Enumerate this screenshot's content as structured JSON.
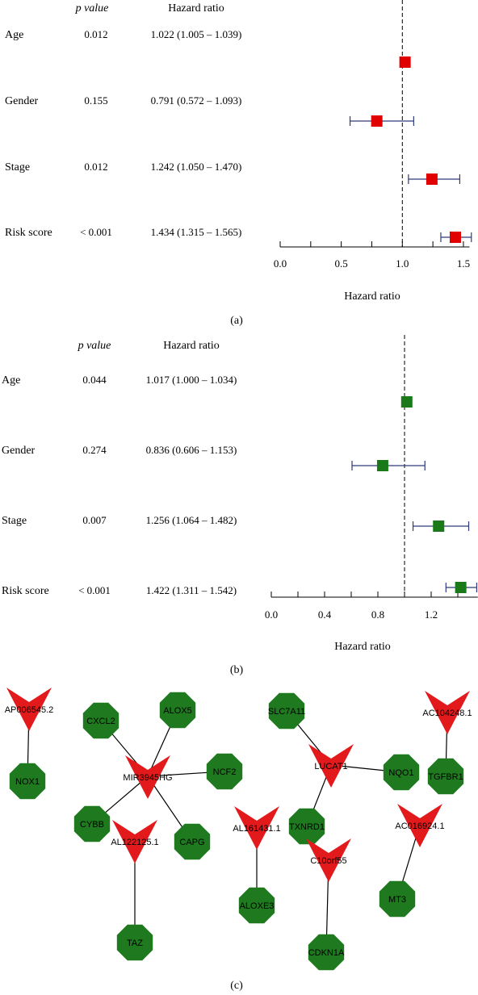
{
  "panels": [
    {
      "label": "(a)",
      "columns": {
        "pvalue": "p value",
        "hr": "Hazard ratio"
      },
      "color": "#e00000",
      "chart_data": {
        "type": "forest",
        "title": "",
        "xlabel": "Hazard ratio",
        "xlim": [
          0,
          1.55
        ],
        "ticks": [
          "0.0",
          "0.5",
          "1.0",
          "1.5"
        ],
        "tick_values": [
          0,
          0.5,
          1.0,
          1.5
        ],
        "reference_line": 1.0,
        "rows": [
          {
            "name": "Age",
            "p": "0.012",
            "hr_text": "1.022 (1.005 – 1.039)",
            "hr": 1.022,
            "lo": 1.005,
            "hi": 1.039
          },
          {
            "name": "Gender",
            "p": "0.155",
            "hr_text": "0.791 (0.572 – 1.093)",
            "hr": 0.791,
            "lo": 0.572,
            "hi": 1.093
          },
          {
            "name": "Stage",
            "p": "0.012",
            "hr_text": "1.242 (1.050 – 1.470)",
            "hr": 1.242,
            "lo": 1.05,
            "hi": 1.47
          },
          {
            "name": "Risk score",
            "p": "< 0.001",
            "hr_text": "1.434 (1.315 – 1.565)",
            "hr": 1.434,
            "lo": 1.315,
            "hi": 1.565
          }
        ]
      }
    },
    {
      "label": "(b)",
      "columns": {
        "pvalue": "p value",
        "hr": "Hazard ratio"
      },
      "color": "#1a7a1a",
      "chart_data": {
        "type": "forest",
        "title": "",
        "xlabel": "Hazard ratio",
        "xlim": [
          0,
          1.55
        ],
        "ticks": [
          "0.0",
          "0.4",
          "0.8",
          "1.2"
        ],
        "tick_values": [
          0,
          0.4,
          0.8,
          1.2
        ],
        "reference_line": 1.0,
        "rows": [
          {
            "name": "Age",
            "p": "0.044",
            "hr_text": "1.017 (1.000 – 1.034)",
            "hr": 1.017,
            "lo": 1.0,
            "hi": 1.034
          },
          {
            "name": "Gender",
            "p": "0.274",
            "hr_text": "0.836 (0.606 – 1.153)",
            "hr": 0.836,
            "lo": 0.606,
            "hi": 1.153
          },
          {
            "name": "Stage",
            "p": "0.007",
            "hr_text": "1.256 (1.064 – 1.482)",
            "hr": 1.256,
            "lo": 1.064,
            "hi": 1.482
          },
          {
            "name": "Risk score",
            "p": "< 0.001",
            "hr_text": "1.422 (1.311 – 1.542)",
            "hr": 1.422,
            "lo": 1.311,
            "hi": 1.542
          }
        ]
      }
    }
  ],
  "network": {
    "label": "(c)",
    "colors": {
      "lncrna": "#e31a1c",
      "gene": "#1f7a1f"
    },
    "lncrnas": [
      "AP006545.2",
      "MIR3945HG",
      "LUCAT1",
      "AC104248.1",
      "AL161431.1",
      "AC016924.1",
      "AL122125.1",
      "C10orf55"
    ],
    "genes": [
      "NOX1",
      "CXCL2",
      "ALOX5",
      "NCF2",
      "CYBB",
      "CAPG",
      "SLC7A11",
      "NQO1",
      "TXNRD1",
      "TGFBR1",
      "ALOXE3",
      "MT3",
      "TAZ",
      "CDKN1A"
    ],
    "edges": [
      [
        "AP006545.2",
        "NOX1"
      ],
      [
        "MIR3945HG",
        "CXCL2"
      ],
      [
        "MIR3945HG",
        "ALOX5"
      ],
      [
        "MIR3945HG",
        "NCF2"
      ],
      [
        "MIR3945HG",
        "CYBB"
      ],
      [
        "MIR3945HG",
        "CAPG"
      ],
      [
        "LUCAT1",
        "SLC7A11"
      ],
      [
        "LUCAT1",
        "NQO1"
      ],
      [
        "LUCAT1",
        "TXNRD1"
      ],
      [
        "AC104248.1",
        "TGFBR1"
      ],
      [
        "AL161431.1",
        "ALOXE3"
      ],
      [
        "AC016924.1",
        "MT3"
      ],
      [
        "AL122125.1",
        "TAZ"
      ],
      [
        "C10orf55",
        "CDKN1A"
      ]
    ]
  }
}
